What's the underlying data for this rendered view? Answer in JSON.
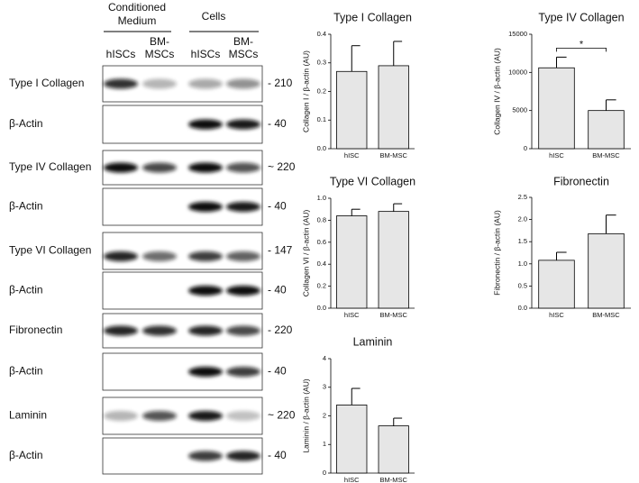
{
  "blot_panel": {
    "headers": [
      [
        "Conditioned",
        "Medium"
      ],
      [
        "Cells"
      ]
    ],
    "lanes": [
      [
        "hISCs"
      ],
      [
        "BM-",
        "MSCs"
      ],
      [
        "hISCs"
      ],
      [
        "BM-",
        "MSCs"
      ]
    ],
    "rows": [
      {
        "label": "Type I Collagen",
        "size": "- 210"
      },
      {
        "label": "β-Actin",
        "size": "- 40"
      },
      {
        "label": "Type IV Collagen",
        "size": "~ 220"
      },
      {
        "label": "β-Actin",
        "size": "- 40"
      },
      {
        "label": "Type VI Collagen",
        "size": "- 147"
      },
      {
        "label": "β-Actin",
        "size": "- 40"
      },
      {
        "label": "Fibronectin",
        "size": "- 220"
      },
      {
        "label": "β-Actin",
        "size": "- 40"
      },
      {
        "label": "Laminin",
        "size": "~ 220"
      },
      {
        "label": "β-Actin",
        "size": "- 40"
      }
    ]
  },
  "chart_data": [
    {
      "type": "bar",
      "title": "Type I Collagen",
      "ylabel": "Collagen I / β-actin (AU)",
      "categories": [
        "hISC",
        "BM-MSC"
      ],
      "values": [
        0.27,
        0.29
      ],
      "errors": [
        0.09,
        0.085
      ],
      "color": "#e6e6e6",
      "ylim": [
        0,
        0.4
      ],
      "yticks": [
        {
          "value": 0,
          "label": "0.0"
        },
        0.1,
        0.2,
        0.3,
        0.4
      ]
    },
    {
      "type": "bar",
      "title": "Type IV Collagen",
      "ylabel": "Collagen IV / β-actin (AU)",
      "categories": [
        "hISC",
        "BM-MSC"
      ],
      "values": [
        10600,
        5000
      ],
      "errors": [
        1400,
        1400
      ],
      "color": "#e6e6e6",
      "ylim": [
        0,
        15000
      ],
      "yticks": [
        0,
        5000,
        10000,
        15000
      ],
      "annotation": "*"
    },
    {
      "type": "bar",
      "title": "Type VI Collagen",
      "ylabel": "Collagen VI / β-actin (AU)",
      "categories": [
        "hISC",
        "BM-MSC"
      ],
      "values": [
        0.84,
        0.88
      ],
      "errors": [
        0.06,
        0.07
      ],
      "color": "#e6e6e6",
      "ylim": [
        0,
        1.0
      ],
      "yticks": [
        {
          "value": 0,
          "label": "0.0"
        },
        0.2,
        0.4,
        0.6,
        0.8,
        {
          "value": 1,
          "label": "1.0"
        }
      ]
    },
    {
      "type": "bar",
      "title": "Fibronectin",
      "ylabel": "Fibronectin / β-actin (AU)",
      "categories": [
        "hISC",
        "BM-MSC"
      ],
      "values": [
        1.08,
        1.68
      ],
      "errors": [
        0.18,
        0.42
      ],
      "color": "#e6e6e6",
      "ylim": [
        0,
        2.5
      ],
      "yticks": [
        {
          "value": 0,
          "label": "0.0"
        },
        0.5,
        {
          "value": 1,
          "label": "1.0"
        },
        1.5,
        {
          "value": 2,
          "label": "2.0"
        },
        2.5
      ]
    },
    {
      "type": "bar",
      "title": "Laminin",
      "ylabel": "Laminin / β-actin (AU)",
      "categories": [
        "hISC",
        "BM-MSC"
      ],
      "values": [
        2.38,
        1.65
      ],
      "errors": [
        0.58,
        0.27
      ],
      "color": "#e6e6e6",
      "ylim": [
        0,
        4
      ],
      "yticks": [
        0,
        1,
        2,
        3,
        4
      ]
    }
  ]
}
